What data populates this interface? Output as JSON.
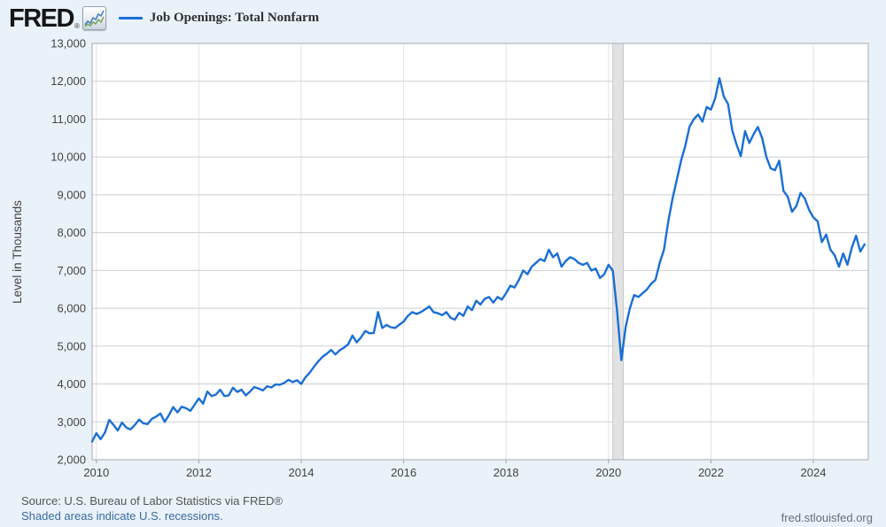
{
  "header": {
    "logo_text": "FRED",
    "registered_mark": "®",
    "legend": {
      "label": "Job Openings: Total Nonfarm",
      "color": "#1a6fd5"
    }
  },
  "chart_data": {
    "type": "line",
    "title": "Job Openings: Total Nonfarm",
    "ylabel": "Level in Thousands",
    "xlabel": "",
    "grid": true,
    "legend_position": "top-left",
    "y_axis": {
      "min": 2000,
      "max": 13000,
      "ticks": [
        2000,
        3000,
        4000,
        5000,
        6000,
        7000,
        8000,
        9000,
        10000,
        11000,
        12000,
        13000
      ]
    },
    "x_axis": {
      "start": "2009-12",
      "end": "2025-01",
      "ticks": [
        2010,
        2012,
        2014,
        2016,
        2018,
        2020,
        2022,
        2024
      ]
    },
    "recession_band": {
      "start": "2020-02",
      "end": "2020-04"
    },
    "series": {
      "name": "Job Openings: Total Nonfarm",
      "color": "#1a6fd5",
      "frequency": "monthly",
      "units": "Level in Thousands",
      "start": "2009-12",
      "values": [
        2480,
        2700,
        2540,
        2720,
        3050,
        2920,
        2770,
        2980,
        2850,
        2800,
        2920,
        3060,
        2960,
        2940,
        3080,
        3140,
        3220,
        3000,
        3180,
        3390,
        3250,
        3400,
        3360,
        3290,
        3450,
        3620,
        3480,
        3800,
        3680,
        3720,
        3850,
        3680,
        3700,
        3900,
        3790,
        3850,
        3700,
        3800,
        3920,
        3880,
        3830,
        3940,
        3910,
        3990,
        3980,
        4030,
        4110,
        4050,
        4100,
        4000,
        4180,
        4300,
        4460,
        4600,
        4720,
        4800,
        4900,
        4780,
        4890,
        4960,
        5050,
        5280,
        5100,
        5230,
        5400,
        5340,
        5350,
        5900,
        5480,
        5560,
        5500,
        5480,
        5570,
        5650,
        5800,
        5900,
        5850,
        5900,
        5970,
        6050,
        5900,
        5870,
        5820,
        5900,
        5750,
        5700,
        5880,
        5800,
        6050,
        5950,
        6200,
        6100,
        6250,
        6300,
        6150,
        6300,
        6230,
        6400,
        6600,
        6550,
        6750,
        7000,
        6900,
        7100,
        7200,
        7300,
        7250,
        7550,
        7350,
        7450,
        7100,
        7250,
        7350,
        7300,
        7200,
        7150,
        7200,
        7000,
        7050,
        6800,
        6900,
        7150,
        7000,
        5950,
        4630,
        5500,
        6000,
        6350,
        6300,
        6400,
        6500,
        6650,
        6750,
        7200,
        7550,
        8300,
        8900,
        9400,
        9900,
        10300,
        10800,
        11000,
        11120,
        10930,
        11320,
        11250,
        11550,
        12080,
        11600,
        11400,
        10700,
        10330,
        10020,
        10680,
        10370,
        10600,
        10790,
        10500,
        10000,
        9700,
        9650,
        9900,
        9100,
        8950,
        8550,
        8700,
        9050,
        8900,
        8600,
        8400,
        8300,
        7750,
        7950,
        7550,
        7400,
        7100,
        7450,
        7150,
        7600,
        7920,
        7500,
        7690
      ]
    }
  },
  "footer": {
    "source_text": "Source: U.S. Bureau of Labor Statistics via FRED®",
    "recession_note": "Shaded areas indicate U.S. recessions.",
    "site": "fred.stlouisfed.org"
  }
}
